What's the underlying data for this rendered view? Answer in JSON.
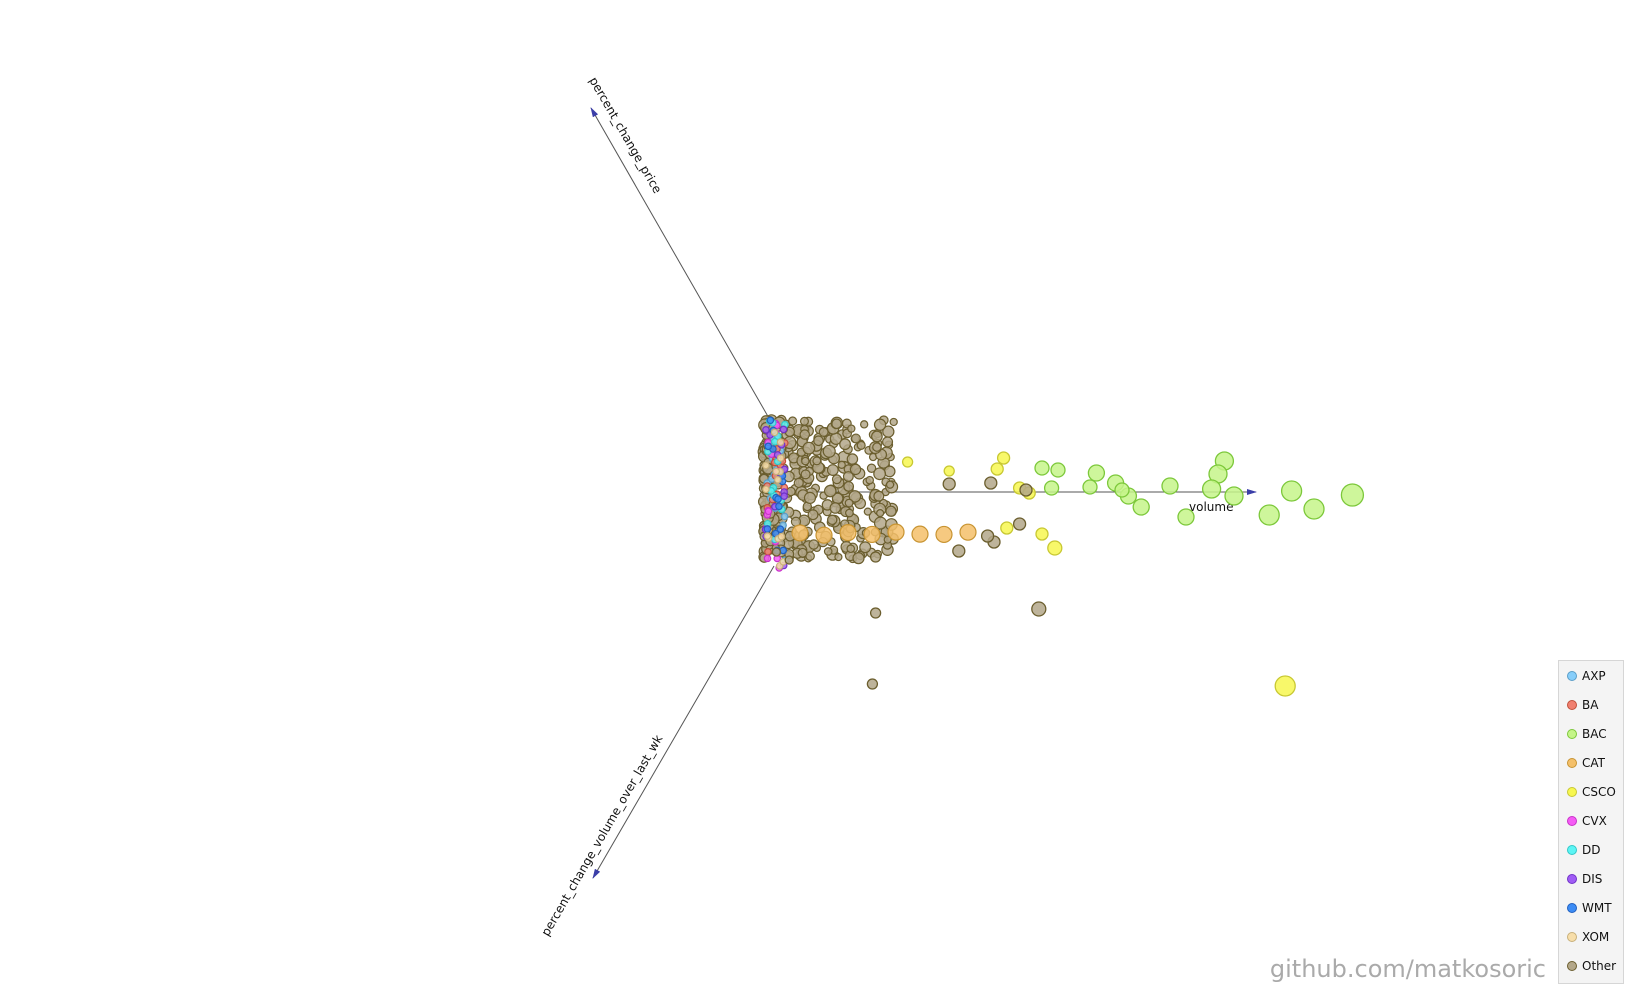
{
  "chart_data": {
    "type": "scatter",
    "title": "",
    "axes": {
      "x": "volume",
      "y": "percent_change_price",
      "z": "percent_change_volume_over_last_wk"
    },
    "legend_position": "bottom-right",
    "series": [
      {
        "name": "AXP",
        "color": "#87cefa",
        "stroke": "#5a9ec8",
        "points": []
      },
      {
        "name": "BA",
        "color": "#f08070",
        "stroke": "#c0503a",
        "points": []
      },
      {
        "name": "BAC",
        "color": "#c5f589",
        "stroke": "#7cc83a",
        "points": [
          {
            "x": 14.2,
            "y": 3.1,
            "s": 9
          },
          {
            "x": 14.0,
            "y": 1.8,
            "s": 9
          },
          {
            "x": 10.2,
            "y": 1.9,
            "s": 8
          },
          {
            "x": 9.0,
            "y": 2.2,
            "s": 7
          },
          {
            "x": 8.5,
            "y": 2.4,
            "s": 7
          },
          {
            "x": 8.8,
            "y": 0.4,
            "s": 7
          },
          {
            "x": 10.8,
            "y": 0.9,
            "s": 8
          },
          {
            "x": 12.5,
            "y": 0.6,
            "s": 8
          },
          {
            "x": 13.8,
            "y": 0.3,
            "s": 9
          },
          {
            "x": 14.5,
            "y": -0.4,
            "s": 9
          },
          {
            "x": 16.3,
            "y": 0.1,
            "s": 10
          },
          {
            "x": 18.2,
            "y": -0.3,
            "s": 11
          },
          {
            "x": 17.0,
            "y": -1.7,
            "s": 10
          },
          {
            "x": 15.6,
            "y": -2.3,
            "s": 10
          },
          {
            "x": 13.0,
            "y": -2.5,
            "s": 8
          },
          {
            "x": 11.6,
            "y": -1.5,
            "s": 8
          },
          {
            "x": 11.2,
            "y": -0.4,
            "s": 8
          },
          {
            "x": 10.0,
            "y": 0.5,
            "s": 7
          },
          {
            "x": 11.0,
            "y": 0.2,
            "s": 7
          }
        ]
      },
      {
        "name": "CAT",
        "color": "#f4c06a",
        "stroke": "#c89432",
        "points": []
      },
      {
        "name": "CSCO",
        "color": "#f7f750",
        "stroke": "#c8c832",
        "points": [
          {
            "x": 7.3,
            "y": 3.4,
            "s": 6
          },
          {
            "x": 7.1,
            "y": 2.3,
            "s": 6
          },
          {
            "x": 7.8,
            "y": 0.4,
            "s": 6
          },
          {
            "x": 8.1,
            "y": -0.1,
            "s": 6
          },
          {
            "x": 7.4,
            "y": -3.6,
            "s": 6
          },
          {
            "x": 8.5,
            "y": -4.2,
            "s": 6
          },
          {
            "x": 8.9,
            "y": -5.6,
            "s": 7
          },
          {
            "x": 16.1,
            "y": -19.4,
            "s": 10
          },
          {
            "x": 4.3,
            "y": 3.0,
            "s": 5
          },
          {
            "x": 5.6,
            "y": 2.1,
            "s": 5
          }
        ]
      },
      {
        "name": "CVX",
        "color": "#f55cf5",
        "stroke": "#c832c8",
        "points": []
      },
      {
        "name": "DD",
        "color": "#5cf5f5",
        "stroke": "#32c8c8",
        "points": []
      },
      {
        "name": "DIS",
        "color": "#a05cf5",
        "stroke": "#7032c8",
        "points": []
      },
      {
        "name": "WMT",
        "color": "#3c8cf5",
        "stroke": "#2060c0",
        "points": []
      },
      {
        "name": "XOM",
        "color": "#f7deaa",
        "stroke": "#c8b07a",
        "points": []
      },
      {
        "name": "Other",
        "color": "#b3a789",
        "stroke": "#6b5e2e",
        "points": [
          {
            "x": 3.2,
            "y": -19.2,
            "s": 5
          },
          {
            "x": 3.3,
            "y": -12.1,
            "s": 5
          },
          {
            "x": 8.4,
            "y": -11.7,
            "s": 7
          },
          {
            "x": 7.0,
            "y": -5.0,
            "s": 6
          },
          {
            "x": 6.8,
            "y": -4.4,
            "s": 6
          },
          {
            "x": 5.9,
            "y": -5.9,
            "s": 6
          },
          {
            "x": 7.8,
            "y": -3.2,
            "s": 6
          },
          {
            "x": 8.0,
            "y": 0.2,
            "s": 6
          },
          {
            "x": 6.9,
            "y": 0.9,
            "s": 6
          },
          {
            "x": 5.6,
            "y": 0.8,
            "s": 6
          },
          {
            "x": 3.3,
            "y": -6.5,
            "s": 5
          },
          {
            "x": 0.2,
            "y": -6.0,
            "s": 4
          },
          {
            "x": 0.6,
            "y": -6.8,
            "s": 4
          }
        ]
      }
    ]
  },
  "watermark": "github.com/matkosoric"
}
